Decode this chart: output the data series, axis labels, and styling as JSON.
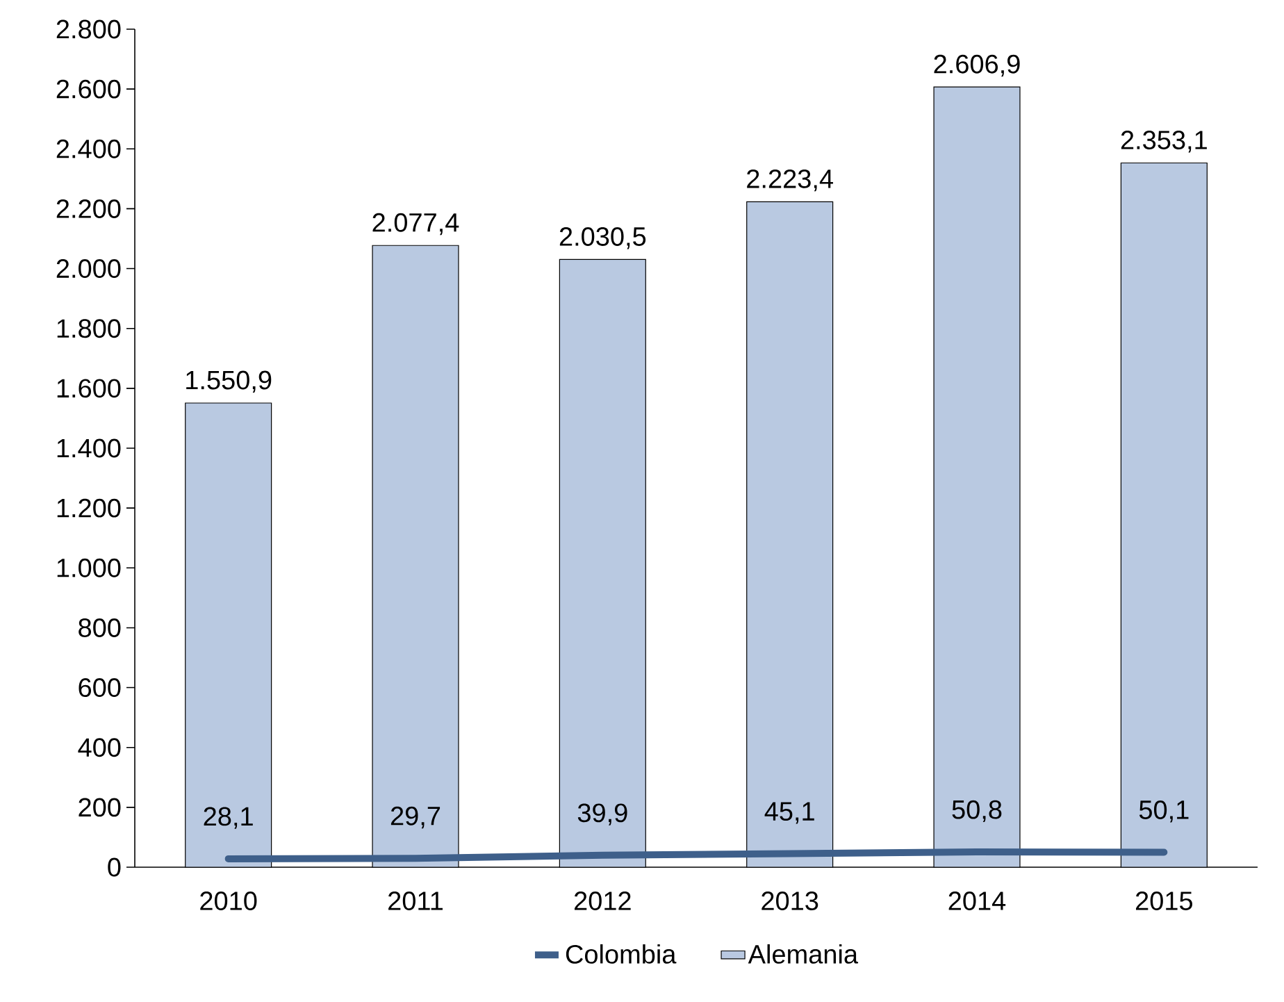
{
  "chart_data": {
    "type": "bar",
    "categories": [
      "2010",
      "2011",
      "2012",
      "2013",
      "2014",
      "2015"
    ],
    "series": [
      {
        "name": "Colombia",
        "type": "line",
        "color": "#3e5f8a",
        "values": [
          28.1,
          29.7,
          39.9,
          45.1,
          50.8,
          50.1
        ],
        "value_labels": [
          "28,1",
          "29,7",
          "39,9",
          "45,1",
          "50,8",
          "50,1"
        ]
      },
      {
        "name": "Alemania",
        "color": "#b9c9e1",
        "values": [
          1550.9,
          2077.4,
          2030.5,
          2223.4,
          2606.9,
          2353.1
        ],
        "value_labels": [
          "1.550,9",
          "2.077,4",
          "2.030,5",
          "2.223,4",
          "2.606,9",
          "2.353,1"
        ]
      }
    ],
    "ylim": [
      0,
      2800
    ],
    "yticks": [
      0,
      200,
      400,
      600,
      800,
      {
        "value": 1000,
        "label": "1.000"
      },
      {
        "value": 1200,
        "label": "1.200"
      },
      {
        "value": 1400,
        "label": "1.400"
      },
      {
        "value": 1600,
        "label": "1.600"
      },
      {
        "value": 1800,
        "label": "1.800"
      },
      {
        "value": 2000,
        "label": "2.000"
      },
      {
        "value": 2200,
        "label": "2.200"
      },
      {
        "value": 2400,
        "label": "2.400"
      },
      {
        "value": 2600,
        "label": "2.600"
      },
      {
        "value": 2800,
        "label": "2.800"
      }
    ],
    "legend": "bottom",
    "grid": false
  }
}
